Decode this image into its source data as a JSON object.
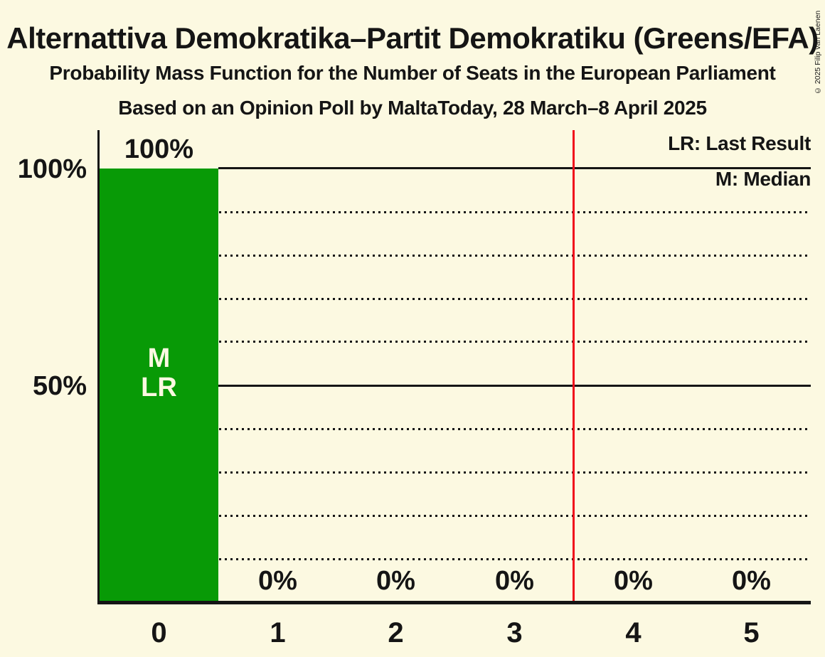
{
  "header": {
    "title": "Alternattiva Demokratika–Partit Demokratiku (Greens/EFA)",
    "subtitle": "Probability Mass Function for the Number of Seats in the European Parliament",
    "poll_line": "Based on an Opinion Poll by MaltaToday, 28 March–8 April 2025",
    "copyright": "© 2025 Filip van Laenen"
  },
  "legend": {
    "last_result": "LR: Last Result",
    "median": "M: Median"
  },
  "y_axis": {
    "tick_labels": [
      "100%",
      "50%"
    ]
  },
  "bar_annotations": {
    "median": "M",
    "last_result": "LR"
  },
  "chart_data": {
    "type": "bar",
    "title": "Alternattiva Demokratika–Partit Demokratiku (Greens/EFA)",
    "subtitle": "Probability Mass Function for the Number of Seats in the European Parliament",
    "source": "Based on an Opinion Poll by MaltaToday, 28 March–8 April 2025",
    "categories": [
      "0",
      "1",
      "2",
      "3",
      "4",
      "5"
    ],
    "values": [
      100,
      0,
      0,
      0,
      0,
      0
    ],
    "value_labels": [
      "100%",
      "0%",
      "0%",
      "0%",
      "0%",
      "0%"
    ],
    "ylim": [
      0,
      100
    ],
    "y_solid_gridlines_pct": [
      100,
      50
    ],
    "y_dotted_gridlines_pct": [
      90,
      80,
      70,
      60,
      40,
      30,
      20,
      10
    ],
    "median_seats": 0,
    "last_result_seats": 0,
    "reference_line_x": 3.5,
    "legend_entries": [
      "LR: Last Result",
      "M: Median"
    ],
    "legend_position": "top-right",
    "colors": {
      "background": "#FCF9E1",
      "bar": "#089A06",
      "reference_line": "#F00D1B",
      "ink": "#151515"
    }
  }
}
